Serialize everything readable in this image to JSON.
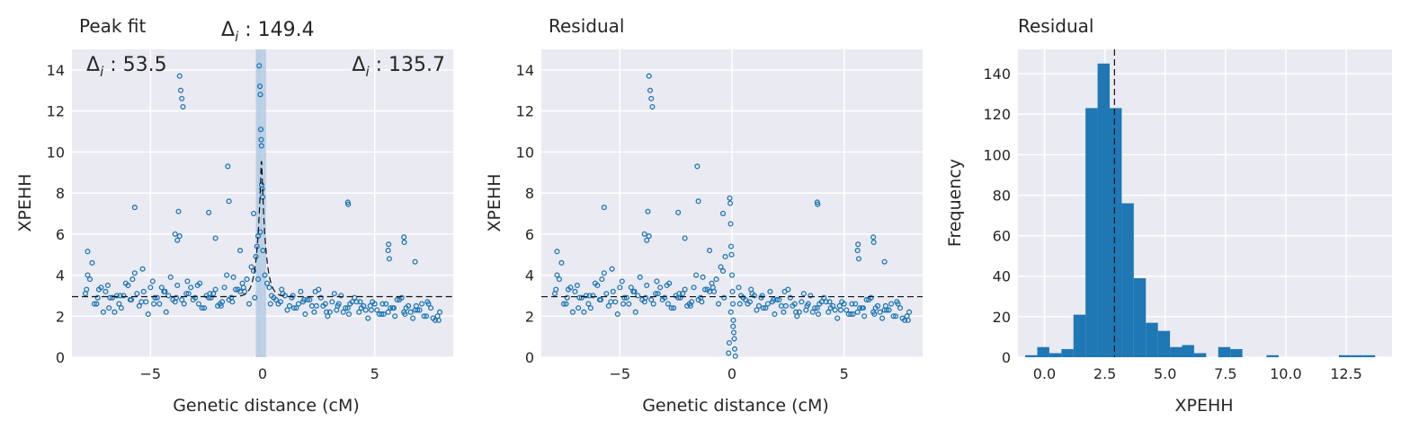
{
  "colors": {
    "marker": "#1f77b4",
    "panel_bg": "#eaeaf2",
    "grid": "#ffffff",
    "reference": "#000000",
    "span": "#a9c6e0"
  },
  "chart_data": [
    {
      "type": "scatter",
      "title": "Peak fit",
      "xlabel": "Genetic distance (cM)",
      "ylabel": "XPEHH",
      "xlim": [
        -8.5,
        8.5
      ],
      "ylim": [
        0,
        15
      ],
      "xticks": [
        -5,
        0,
        5
      ],
      "xtick_labels": [
        "−5",
        "0",
        "5"
      ],
      "yticks": [
        0,
        2,
        4,
        6,
        8,
        10,
        12,
        14
      ],
      "ytick_labels": [
        "0",
        "2",
        "4",
        "6",
        "8",
        "10",
        "12",
        "14"
      ],
      "grid": true,
      "annotations": [
        {
          "symbol": "Δ",
          "sub": "i",
          "text": " : 53.5",
          "placement": "top-left"
        },
        {
          "symbol": "Δ",
          "sub": "i",
          "text": " : 149.4",
          "placement": "above-center"
        },
        {
          "symbol": "Δ",
          "sub": "i",
          "text": " : 135.7",
          "placement": "top-right"
        }
      ],
      "highlight_span_x": [
        -0.3,
        0.15
      ],
      "baseline": 2.95,
      "peak_fit_center": -0.05,
      "peak_fit_height": 9.9,
      "series": [
        {
          "x": [
            -7.9,
            -7.7,
            -7.5,
            -7.3,
            -7.1,
            -6.9,
            -6.7,
            -6.5,
            -6.3,
            -6.1,
            -5.9,
            -5.7,
            -5.5,
            -5.3,
            -5.1,
            -4.9,
            -4.7,
            -4.5,
            -4.3,
            -4.1,
            -3.9,
            -3.7,
            -3.5,
            -3.3,
            -3.1,
            -2.9,
            -2.7,
            -2.5,
            -2.3,
            -2.1,
            -1.9,
            -1.7,
            -1.5,
            -1.3,
            -1.1,
            -0.9,
            -0.7,
            -0.5,
            -0.3,
            -0.1,
            0.1,
            0.3,
            0.5,
            0.7,
            0.9,
            1.1,
            1.3,
            1.5,
            1.7,
            1.9,
            2.1,
            2.3,
            2.5,
            2.7,
            2.9,
            3.1,
            3.3,
            3.5,
            3.7,
            3.9,
            4.1,
            4.3,
            4.5,
            4.7,
            4.9,
            5.1,
            5.3,
            5.5,
            5.7,
            5.9,
            6.1,
            6.3,
            6.5,
            6.7,
            6.9,
            7.1,
            7.3,
            7.5,
            7.7,
            7.9,
            -7.8,
            -7.4,
            -7.0,
            -6.6,
            -6.2,
            -5.8,
            -5.4,
            -5.0,
            -4.6,
            -4.2,
            -3.8,
            -3.4,
            -3.0,
            -2.6,
            -2.2,
            -1.8,
            -1.4,
            -1.0,
            -0.6,
            -0.2,
            0.2,
            0.6,
            1.0,
            1.4,
            1.8,
            2.2,
            2.6,
            3.0,
            3.4,
            3.8,
            4.2,
            4.6,
            5.0,
            5.4,
            5.8,
            6.2,
            6.6,
            7.0,
            7.4,
            7.8,
            -7.6,
            -6.8,
            -6.0,
            -5.2,
            -4.4,
            -3.6,
            -2.8,
            -2.0,
            -1.2,
            -0.4,
            0.4,
            1.2,
            2.0,
            2.8,
            3.6,
            4.4,
            5.2,
            6.0,
            6.8,
            7.6,
            -7.2,
            -6.4,
            -5.6,
            -4.8,
            -4.0,
            -3.2,
            -2.4,
            -1.6,
            -0.8,
            0.8,
            1.6,
            2.4,
            3.2,
            4.0,
            4.8,
            5.6,
            6.4,
            7.2,
            -7.85,
            -7.35,
            -6.85,
            -6.35,
            -5.85,
            -5.35,
            -4.85,
            -4.35,
            -3.85,
            -3.35,
            -2.85,
            -2.35,
            -1.85,
            -1.35,
            -0.85,
            -0.35,
            0.35,
            0.85,
            1.35,
            1.85,
            2.35,
            2.85,
            3.35,
            3.85,
            4.35,
            4.85,
            5.35,
            5.85,
            6.35,
            6.85,
            7.35,
            7.85,
            -3.7,
            -3.65,
            -3.6,
            -3.55,
            -3.75,
            -5.7,
            -2.4,
            -2.1,
            -1.55,
            -1.5,
            -1.0,
            -0.4,
            -0.15,
            -0.12,
            -0.1,
            -0.08,
            -0.06,
            -0.05,
            -0.04,
            -0.02,
            0.0,
            0.02,
            -0.2,
            -0.25,
            3.8,
            3.82,
            5.6,
            5.62,
            5.65,
            6.3,
            6.32,
            6.8,
            -7.8,
            -3.9,
            -3.8
          ],
          "y": [
            3.1,
            3.8,
            2.6,
            3.3,
            2.2,
            3.5,
            2.9,
            3.0,
            2.4,
            3.6,
            2.8,
            4.1,
            2.5,
            3.2,
            2.1,
            3.7,
            2.9,
            3.4,
            2.2,
            3.9,
            2.7,
            5.9,
            2.6,
            3.1,
            2.8,
            3.5,
            2.4,
            3.0,
            2.9,
            3.3,
            2.6,
            3.4,
            2.8,
            3.9,
            3.3,
            3.6,
            3.8,
            4.4,
            4.9,
            6.1,
            4.0,
            3.4,
            2.9,
            2.6,
            3.1,
            2.3,
            2.9,
            2.4,
            3.2,
            2.1,
            2.8,
            2.2,
            3.3,
            2.5,
            2.0,
            2.7,
            2.3,
            3.0,
            2.4,
            2.6,
            2.9,
            2.2,
            2.5,
            1.9,
            2.7,
            2.3,
            2.1,
            2.6,
            2.4,
            2.0,
            2.8,
            2.2,
            2.5,
            1.9,
            2.3,
            2.6,
            2.0,
            2.4,
            1.8,
            2.2,
            4.0,
            2.6,
            3.2,
            2.2,
            3.0,
            3.8,
            2.7,
            3.4,
            2.6,
            3.0,
            3.5,
            3.1,
            2.9,
            2.4,
            3.1,
            2.7,
            2.9,
            3.2,
            2.6,
            3.8,
            3.6,
            2.8,
            3.0,
            2.4,
            2.7,
            2.5,
            2.9,
            2.2,
            2.6,
            2.4,
            2.7,
            2.3,
            2.6,
            2.1,
            2.4,
            2.9,
            2.2,
            2.3,
            2.6,
            2.0,
            4.6,
            2.9,
            3.5,
            2.7,
            3.2,
            2.8,
            3.6,
            2.5,
            3.3,
            4.2,
            3.0,
            2.5,
            2.8,
            2.6,
            2.2,
            2.4,
            2.1,
            2.8,
            2.3,
            1.9,
            3.4,
            2.6,
            3.1,
            2.9,
            2.8,
            3.4,
            2.9,
            4.0,
            3.2,
            2.7,
            2.6,
            2.5,
            3.1,
            2.7,
            2.5,
            2.2,
            2.4,
            2.0,
            3.3,
            2.9,
            2.4,
            3.0,
            2.8,
            4.3,
            2.6,
            3.2,
            2.9,
            3.7,
            2.6,
            3.1,
            2.5,
            2.7,
            3.4,
            2.9,
            2.6,
            3.3,
            3.0,
            2.8,
            3.2,
            2.2,
            2.5,
            2.1,
            2.7,
            2.3,
            2.6,
            2.4,
            2.1,
            2.5,
            2.7,
            1.8,
            13.7,
            13.0,
            12.6,
            12.2,
            7.1,
            7.3,
            7.05,
            5.8,
            9.3,
            7.6,
            5.2,
            7.0,
            14.2,
            13.2,
            12.8,
            11.1,
            10.6,
            10.3,
            8.4,
            8.2,
            7.8,
            5.2,
            5.9,
            5.4,
            7.55,
            7.45,
            5.2,
            5.5,
            4.8,
            5.85,
            5.6,
            4.65,
            5.15,
            6.0,
            5.7
          ]
        }
      ]
    },
    {
      "type": "scatter",
      "title": "Residual",
      "xlabel": "Genetic distance (cM)",
      "ylabel": "XPEHH",
      "xlim": [
        -8.5,
        8.5
      ],
      "ylim": [
        0,
        15
      ],
      "xticks": [
        -5,
        0,
        5
      ],
      "xtick_labels": [
        "−5",
        "0",
        "5"
      ],
      "yticks": [
        0,
        2,
        4,
        6,
        8,
        10,
        12,
        14
      ],
      "ytick_labels": [
        "0",
        "2",
        "4",
        "6",
        "8",
        "10",
        "12",
        "14"
      ],
      "grid": true,
      "baseline": 2.95,
      "residual_center_x": [
        -0.1,
        -0.08,
        -0.06,
        -0.04,
        -0.02,
        0.0,
        0.02,
        0.04,
        0.06,
        0.08,
        0.1,
        -0.12,
        0.12,
        -0.15,
        0.15,
        -0.05,
        0.05
      ],
      "residual_center_y": [
        7.75,
        7.5,
        6.5,
        5.4,
        5.0,
        4.0,
        3.2,
        2.6,
        1.8,
        1.2,
        0.9,
        0.7,
        0.4,
        0.2,
        0.05,
        2.2,
        1.5
      ]
    },
    {
      "type": "bar",
      "title": "Residual",
      "xlabel": "XPEHH",
      "ylabel": "Frequency",
      "xlim": [
        -1.1,
        14.4
      ],
      "ylim": [
        0,
        152
      ],
      "xticks": [
        0.0,
        2.5,
        5.0,
        7.5,
        10.0,
        12.5
      ],
      "xtick_labels": [
        "0.0",
        "2.5",
        "5.0",
        "7.5",
        "10.0",
        "12.5"
      ],
      "yticks": [
        0,
        20,
        40,
        60,
        80,
        100,
        120,
        140
      ],
      "ytick_labels": [
        "0",
        "20",
        "40",
        "60",
        "80",
        "100",
        "120",
        "140"
      ],
      "grid": true,
      "reference_line_x": 2.9,
      "bin_edges": [
        -0.8,
        -0.3,
        0.2,
        0.7,
        1.2,
        1.7,
        2.2,
        2.7,
        3.2,
        3.7,
        4.2,
        4.7,
        5.2,
        5.7,
        6.2,
        6.7,
        7.2,
        7.7,
        8.2,
        8.7,
        9.2,
        9.7,
        10.2,
        10.7,
        11.2,
        11.7,
        12.2,
        12.7,
        13.2,
        13.7
      ],
      "values": [
        1,
        5,
        2,
        4,
        21,
        123,
        145,
        123,
        76,
        39,
        17,
        13,
        5,
        6,
        2,
        0,
        5,
        4,
        0,
        0,
        1,
        0,
        0,
        0,
        0,
        0,
        1,
        1,
        1
      ]
    }
  ]
}
